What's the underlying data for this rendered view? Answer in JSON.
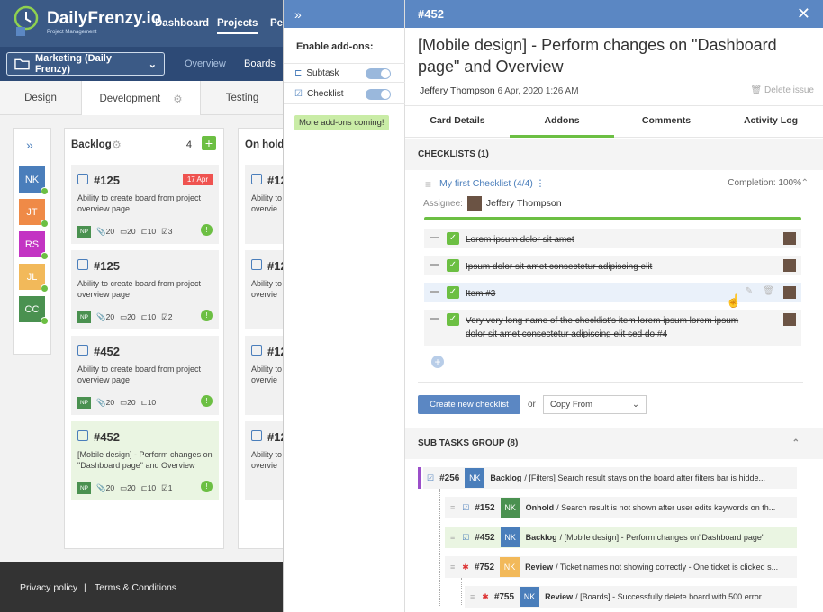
{
  "header": {
    "logo": "DailyFrenzy.io",
    "logo_sub": "Project Management",
    "nav": [
      "Dashboard",
      "Projects",
      "Pe"
    ]
  },
  "subbar": {
    "project": "Marketing (Daily Frenzy)",
    "links": [
      "Overview",
      "Boards"
    ]
  },
  "board_tabs": [
    "Design",
    "Development",
    "Testing"
  ],
  "members": [
    {
      "initials": "NK",
      "color": "#4a7ebb"
    },
    {
      "initials": "JT",
      "color": "#ef8a47"
    },
    {
      "initials": "RS",
      "color": "#c334c3"
    },
    {
      "initials": "JL",
      "color": "#f2b95a"
    },
    {
      "initials": "CC",
      "color": "#4a9150"
    }
  ],
  "backlog": {
    "title": "Backlog",
    "count": "4",
    "cards": [
      {
        "id": "#125",
        "date": "17 Apr",
        "desc": "Ability to create board from project overview page",
        "meta": {
          "np": "NP",
          "a": "20",
          "c": "20",
          "s": "10",
          "k": "3"
        }
      },
      {
        "id": "#125",
        "desc": "Ability to create board from project overview page",
        "meta": {
          "np": "NP",
          "a": "20",
          "c": "20",
          "s": "10",
          "k": "2"
        }
      },
      {
        "id": "#452",
        "desc": "Ability to create board from project overview page",
        "meta": {
          "np": "NP",
          "a": "20",
          "c": "20",
          "s": "10",
          "k": ""
        }
      },
      {
        "id": "#452",
        "desc": "[Mobile design] - Perform changes on \"Dashboard page\" and Overview",
        "meta": {
          "np": "NP",
          "a": "20",
          "c": "20",
          "s": "10",
          "k": "1"
        }
      }
    ]
  },
  "onhold": {
    "title": "On hold",
    "cards": [
      {
        "id": "#12",
        "desc": "Ability to overvie"
      },
      {
        "id": "#12",
        "desc": "Ability to overvie"
      },
      {
        "id": "#12",
        "desc": "Ability to overvie"
      },
      {
        "id": "#12",
        "desc": "Ability to overvie"
      }
    ]
  },
  "footer": {
    "privacy": "Privacy policy",
    "sep": "|",
    "terms": "Terms & Conditions"
  },
  "addons": {
    "title": "Enable add-ons:",
    "items": [
      "Subtask",
      "Checklist"
    ],
    "more": "More add-ons coming!"
  },
  "details": {
    "id": "#452",
    "title": "[Mobile design] - Perform changes on \"Dashboard page\" and Overview",
    "author": "Jeffery Thompson",
    "date": "6 Apr, 2020 1:26 AM",
    "delete": "Delete issue",
    "tabs": [
      "Card Details",
      "Addons",
      "Comments",
      "Activity Log"
    ],
    "checklists_head": "CHECKLISTS (1)",
    "checklist_name": "My first Checklist (4/4)",
    "completion": "Completion: 100%",
    "assignee_label": "Assignee:",
    "assignee": "Jeffery Thompson",
    "items": [
      "Lorem ipsum dolor sit amet",
      "Ipsum dolor sit amet consectetur adipiscing elit",
      "Item #3",
      "Very very long name of the checklist's item lorem ipsum lorem ipsum dolor sit amet consectetur adipiscing elit sed do #4"
    ],
    "create": "Create new checklist",
    "or": "or",
    "copy": "Copy From",
    "subtasks_head": "SUB TASKS GROUP (8)",
    "subtasks": [
      {
        "num": "#256",
        "who": "NK",
        "color": "#4a7ebb",
        "status": "Backlog",
        "text": "/ [Filters] Search result stays on the board after filters bar is hidde..."
      },
      {
        "num": "#152",
        "who": "NK",
        "color": "#4a9150",
        "status": "Onhold",
        "text": "/ Search result is not shown after user edits keywords on th..."
      },
      {
        "num": "#452",
        "who": "NK",
        "color": "#4a7ebb",
        "status": "Backlog",
        "text": "/ [Mobile design] - Perform changes on\"Dashboard page\""
      },
      {
        "num": "#752",
        "who": "NK",
        "color": "#f2b95a",
        "status": "Review",
        "text": "/ Ticket names not showing correctly - One ticket is clicked s..."
      },
      {
        "num": "#755",
        "who": "NK",
        "color": "#4a7ebb",
        "status": "Review",
        "text": "/ [Boards] - Successfully delete board with 500 error"
      }
    ]
  }
}
